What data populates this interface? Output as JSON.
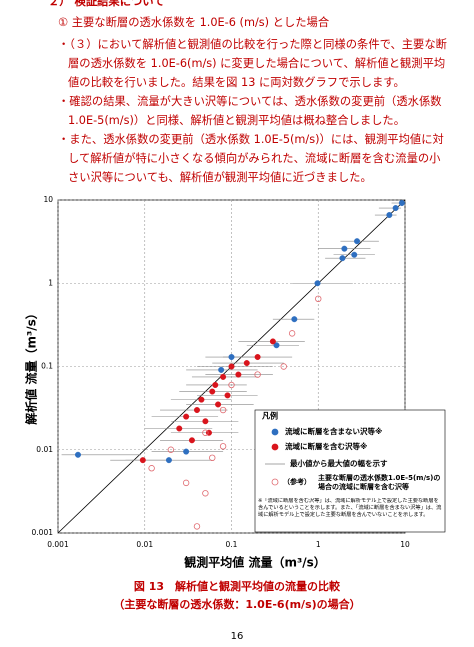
{
  "section_heading": "２） 検証結果について",
  "subheading": "① 主要な断層の透水係数を 1.0E-6 (m/s) とした場合",
  "paragraphs": [
    "・（３）において解析値と観測値の比較を行った際と同様の条件で、主要な断層の透水係数を 1.0E-6(m/s) に変更した場合について、解析値と観測平均値の比較を行いました。結果を図 13 に両対数グラフで示します。",
    "・確認の結果、流量が大きい沢等については、透水係数の変更前（透水係数 1.0E-5(m/s)）と同様、解析値と観測平均値は概ね整合しました。",
    "・また、透水係数の変更前（透水係数 1.0E-5(m/s)）には、観測平均値に対して解析値が特に小さくなる傾向がみられた、流域に断層を含む流量の小さい沢等についても、解析値が観測平均値に近づきました。"
  ],
  "chart_data": {
    "type": "scatter",
    "log_scale": true,
    "grid": true,
    "x_label": "観測平均値 流量（m³/s）",
    "y_label": "解析値 流量（m³/s）",
    "xlim": [
      0.001,
      10
    ],
    "ylim": [
      0.001,
      10
    ],
    "xticks": [
      0.001,
      0.01,
      0.1,
      1,
      10
    ],
    "yticks": [
      0.001,
      0.01,
      0.1,
      1,
      10
    ],
    "legend_title": "凡例",
    "error_bar_label": "最小値から最大値の幅を示す",
    "reference_prefix": "（参考）",
    "note": "※「流域に断層を含む沢等」は、流域に解析モデル上で設定した主要な断層を含んでいるということを示します。また、「流域に断層を含まない沢等」は、流域に解析モデル上で設定した主要な断層を含んでいないことを示します。",
    "series": [
      {
        "name": "流域に断層を含まない沢等※",
        "color": "#2e6fc0",
        "filled": true,
        "x": [
          0.0017,
          0.019,
          0.03,
          0.076,
          0.1,
          0.33,
          0.53,
          0.98,
          1.9,
          2.0,
          2.6,
          2.8,
          6.6,
          7.8,
          9.2
        ],
        "values": [
          0.0087,
          0.0075,
          0.0095,
          0.091,
          0.13,
          0.18,
          0.37,
          1.0,
          2.0,
          2.6,
          2.2,
          3.2,
          6.6,
          8,
          9.2
        ],
        "x_min": [
          0.0011,
          0.006,
          0.012,
          0.03,
          0.05,
          0.15,
          0.3,
          0.5,
          1.2,
          1.0,
          1.5,
          1.8,
          4.5,
          5,
          7
        ],
        "x_max": [
          0.009,
          0.06,
          0.08,
          0.2,
          0.2,
          0.6,
          0.9,
          2.5,
          3.5,
          4,
          4.5,
          5,
          8,
          9,
          10
        ]
      },
      {
        "name": "流域に断層を含む沢等※",
        "color": "#d9141c",
        "filled": true,
        "x": [
          0.0095,
          0.025,
          0.03,
          0.04,
          0.045,
          0.05,
          0.06,
          0.065,
          0.07,
          0.08,
          0.09,
          0.1,
          0.12,
          0.035,
          0.055,
          0.15,
          0.2,
          0.3
        ],
        "values": [
          0.0075,
          0.018,
          0.025,
          0.03,
          0.04,
          0.022,
          0.05,
          0.06,
          0.035,
          0.075,
          0.045,
          0.1,
          0.08,
          0.013,
          0.016,
          0.11,
          0.13,
          0.2
        ],
        "x_min": [
          0.004,
          0.01,
          0.012,
          0.015,
          0.02,
          0.02,
          0.025,
          0.03,
          0.03,
          0.035,
          0.04,
          0.04,
          0.05,
          0.015,
          0.02,
          0.06,
          0.08,
          0.12
        ],
        "x_max": [
          0.02,
          0.06,
          0.07,
          0.09,
          0.1,
          0.12,
          0.15,
          0.15,
          0.18,
          0.2,
          0.2,
          0.3,
          0.3,
          0.08,
          0.12,
          0.4,
          0.5,
          0.7
        ]
      },
      {
        "name": "主要な断層の透水係数1.0E-5(m/s)の場合の流域に断層を含む沢等",
        "color": "#e06a70",
        "filled": false,
        "x": [
          0.012,
          0.02,
          0.03,
          0.04,
          0.05,
          0.06,
          0.08,
          0.1,
          0.2,
          0.4,
          0.5,
          1,
          0.05,
          0.08
        ],
        "values": [
          0.006,
          0.01,
          0.004,
          0.0012,
          0.003,
          0.008,
          0.03,
          0.06,
          0.08,
          0.1,
          0.25,
          0.65,
          0.016,
          0.011
        ]
      }
    ]
  },
  "caption": [
    "図 13　解析値と観測平均値の流量の比較",
    "（主要な断層の透水係数：1.0E-6(m/s)の場合）"
  ],
  "page_number": "16"
}
